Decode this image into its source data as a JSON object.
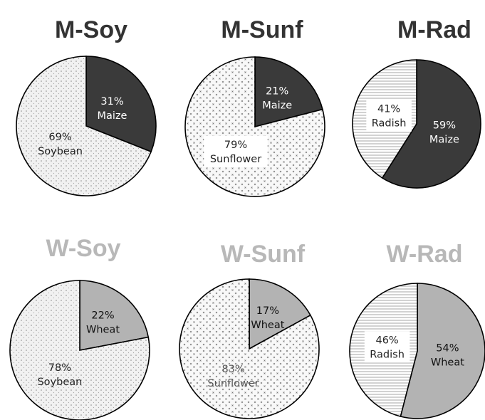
{
  "colors": {
    "maize": "#3a3a3a",
    "wheat": "#b3b3b3",
    "soybean": "#f1f1f1",
    "sunflower": "#f7f7f7",
    "radish": "#ffffff",
    "title_maize_group": "#333333",
    "title_wheat_group": "#b8b8b8",
    "outline": "#000000"
  },
  "chart_data": [
    {
      "type": "pie",
      "title": "M-Soy",
      "title_color": "#333333",
      "slices": [
        {
          "label": "Maize",
          "pct_label": "31%",
          "value": 31,
          "fill": "dark",
          "text_color": "#ffffff"
        },
        {
          "label": "Soybean",
          "pct_label": "69%",
          "value": 69,
          "fill": "dots",
          "text_color": "#222222"
        }
      ]
    },
    {
      "type": "pie",
      "title": "M-Sunf",
      "title_color": "#333333",
      "slices": [
        {
          "label": "Maize",
          "pct_label": "21%",
          "value": 21,
          "fill": "dark",
          "text_color": "#ffffff"
        },
        {
          "label": "Sunflower",
          "pct_label": "79%",
          "value": 79,
          "fill": "cross",
          "text_color": "#222222",
          "boxed": true
        }
      ]
    },
    {
      "type": "pie",
      "title": "M-Rad",
      "title_color": "#333333",
      "slices": [
        {
          "label": "Maize",
          "pct_label": "59%",
          "value": 59,
          "fill": "dark",
          "text_color": "#ffffff"
        },
        {
          "label": "Radish",
          "pct_label": "41%",
          "value": 41,
          "fill": "hlines",
          "text_color": "#222222",
          "boxed": true
        }
      ]
    },
    {
      "type": "pie",
      "title": "W-Soy",
      "title_color": "#b8b8b8",
      "slices": [
        {
          "label": "Wheat",
          "pct_label": "22%",
          "value": 22,
          "fill": "gray",
          "text_color": "#111111"
        },
        {
          "label": "Soybean",
          "pct_label": "78%",
          "value": 78,
          "fill": "dots",
          "text_color": "#222222"
        }
      ]
    },
    {
      "type": "pie",
      "title": "W-Sunf",
      "title_color": "#b8b8b8",
      "slices": [
        {
          "label": "Wheat",
          "pct_label": "17%",
          "value": 17,
          "fill": "gray",
          "text_color": "#111111"
        },
        {
          "label": "Sunflower",
          "pct_label": "83%",
          "value": 83,
          "fill": "cross",
          "text_color": "#555555"
        }
      ]
    },
    {
      "type": "pie",
      "title": "W-Rad",
      "title_color": "#b8b8b8",
      "slices": [
        {
          "label": "Wheat",
          "pct_label": "54%",
          "value": 54,
          "fill": "gray",
          "text_color": "#111111"
        },
        {
          "label": "Radish",
          "pct_label": "46%",
          "value": 46,
          "fill": "hlines",
          "text_color": "#222222",
          "boxed": true
        }
      ]
    }
  ]
}
